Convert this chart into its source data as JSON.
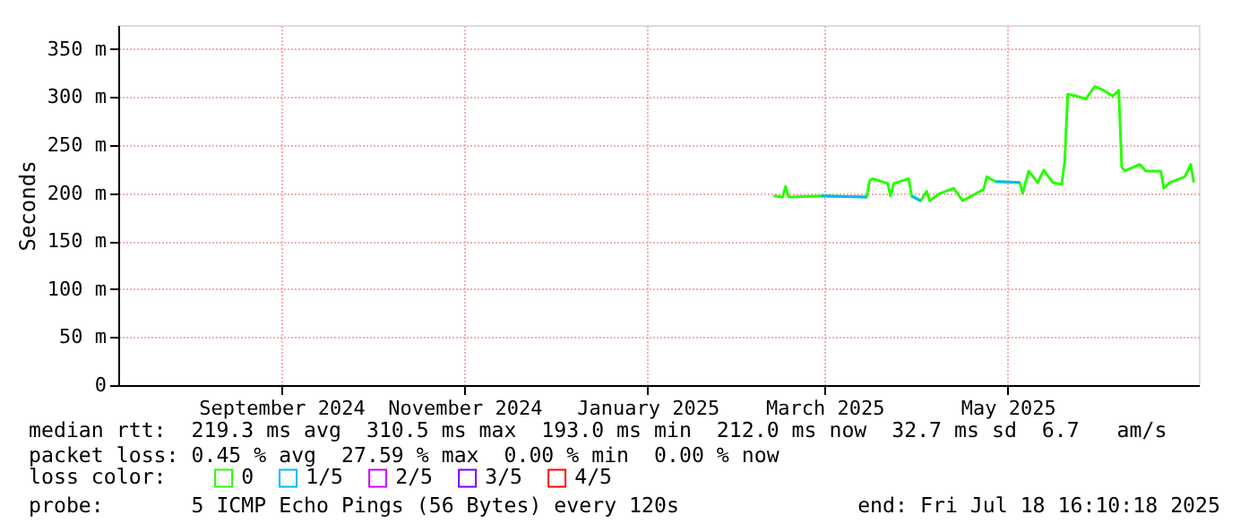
{
  "chart_data": {
    "type": "line",
    "ylabel": "Seconds",
    "legend_title": "loss color:",
    "x": [
      "2025-02-27",
      "2025-03-02",
      "2025-03-03",
      "2025-03-04",
      "2025-03-15",
      "2025-03-30",
      "2025-03-31",
      "2025-04-01",
      "2025-04-06",
      "2025-04-07",
      "2025-04-08",
      "2025-04-13",
      "2025-04-14",
      "2025-04-17",
      "2025-04-19",
      "2025-04-20",
      "2025-04-23",
      "2025-04-28",
      "2025-05-01",
      "2025-05-04",
      "2025-05-08",
      "2025-05-09",
      "2025-05-12",
      "2025-05-20",
      "2025-05-21",
      "2025-05-23",
      "2025-05-26",
      "2025-05-28",
      "2025-05-31",
      "2025-06-03",
      "2025-06-04",
      "2025-06-05",
      "2025-06-08",
      "2025-06-11",
      "2025-06-14",
      "2025-06-17",
      "2025-06-20",
      "2025-06-22",
      "2025-06-23",
      "2025-06-24",
      "2025-06-29",
      "2025-07-01",
      "2025-07-06",
      "2025-07-07",
      "2025-07-09",
      "2025-07-14",
      "2025-07-16",
      "2025-07-17"
    ],
    "series": [
      {
        "name": "0",
        "color": "#26ff00",
        "values": [
          197,
          196,
          207,
          196,
          197,
          196,
          213,
          215,
          210,
          197,
          210,
          215,
          197,
          192,
          202,
          192,
          199,
          205,
          192,
          197,
          204,
          217,
          212,
          211,
          200,
          223,
          211,
          224,
          211,
          209,
          233,
          303,
          301,
          298,
          311,
          307,
          301,
          307,
          227,
          223,
          230,
          223,
          223,
          205,
          211,
          217,
          230,
          211
        ]
      },
      {
        "name": "1/5",
        "color": "#00b8ff",
        "values": [
          null,
          null,
          null,
          null,
          197,
          196,
          null,
          null,
          null,
          null,
          null,
          null,
          197,
          192,
          null,
          null,
          null,
          null,
          null,
          null,
          null,
          null,
          212,
          211,
          null,
          null,
          null,
          null,
          null,
          null,
          null,
          null,
          null,
          null,
          null,
          null,
          null,
          null,
          null,
          null,
          null,
          null,
          null,
          null,
          null,
          null,
          null,
          null
        ]
      },
      {
        "name": "2/5",
        "color": "#cc00ff",
        "values": [
          null,
          null,
          null,
          null,
          null,
          null,
          null,
          null,
          null,
          null,
          null,
          null,
          null,
          null,
          null,
          null,
          null,
          null,
          null,
          null,
          null,
          null,
          null,
          null,
          null,
          null,
          null,
          null,
          null,
          null,
          null,
          null,
          null,
          null,
          null,
          null,
          null,
          null,
          null,
          null,
          null,
          null,
          null,
          null,
          null,
          null,
          null,
          null
        ]
      },
      {
        "name": "3/5",
        "color": "#7700ff",
        "values": [
          null,
          null,
          null,
          null,
          null,
          null,
          null,
          null,
          null,
          null,
          null,
          null,
          null,
          null,
          null,
          null,
          null,
          null,
          null,
          null,
          null,
          null,
          null,
          null,
          null,
          null,
          null,
          null,
          null,
          null,
          null,
          null,
          null,
          null,
          null,
          null,
          null,
          null,
          null,
          null,
          null,
          null,
          null,
          null,
          null,
          null,
          null,
          null
        ]
      },
      {
        "name": "4/5",
        "color": "#ff0000",
        "values": [
          null,
          null,
          null,
          null,
          null,
          null,
          null,
          null,
          null,
          null,
          null,
          null,
          null,
          null,
          null,
          null,
          null,
          null,
          null,
          null,
          null,
          null,
          null,
          null,
          null,
          null,
          null,
          null,
          null,
          null,
          null,
          null,
          null,
          null,
          null,
          null,
          null,
          null,
          null,
          null,
          null,
          null,
          null,
          null,
          null,
          null,
          null,
          null
        ]
      }
    ],
    "xlim": [
      "2024-07-23T16:10",
      "2025-07-18T16:10"
    ],
    "xticks": [
      {
        "value": "2024-09-16",
        "label": "September 2024"
      },
      {
        "value": "2024-11-16",
        "label": "November 2024"
      },
      {
        "value": "2025-01-16",
        "label": "January 2025"
      },
      {
        "value": "2025-03-16",
        "label": "March 2025"
      },
      {
        "value": "2025-05-16",
        "label": "May 2025"
      }
    ],
    "ylim": [
      0,
      375
    ],
    "yticks": [
      0,
      {
        "value": 50,
        "label": "50 m"
      },
      {
        "value": 100,
        "label": "100 m"
      },
      {
        "value": 150,
        "label": "150 m"
      },
      {
        "value": 200,
        "label": "200 m"
      },
      {
        "value": 250,
        "label": "250 m"
      },
      {
        "value": 300,
        "label": "300 m"
      },
      {
        "value": 350,
        "label": "350 m"
      }
    ],
    "grid": true,
    "legend": "bottom",
    "marker": "none",
    "line_style": "solid",
    "annotations": [
      "median rtt:  219.3 ms avg  310.5 ms max  193.0 ms min  212.0 ms now  32.7 ms sd  6.7   am/s",
      "packet loss: 0.45 % avg  27.59 % max  0.00 % min  0.00 % now",
      "probe:       5 ICMP Echo Pings (56 Bytes) every 120s",
      "end: Fri Jul 18 16:10:18 2025"
    ]
  }
}
